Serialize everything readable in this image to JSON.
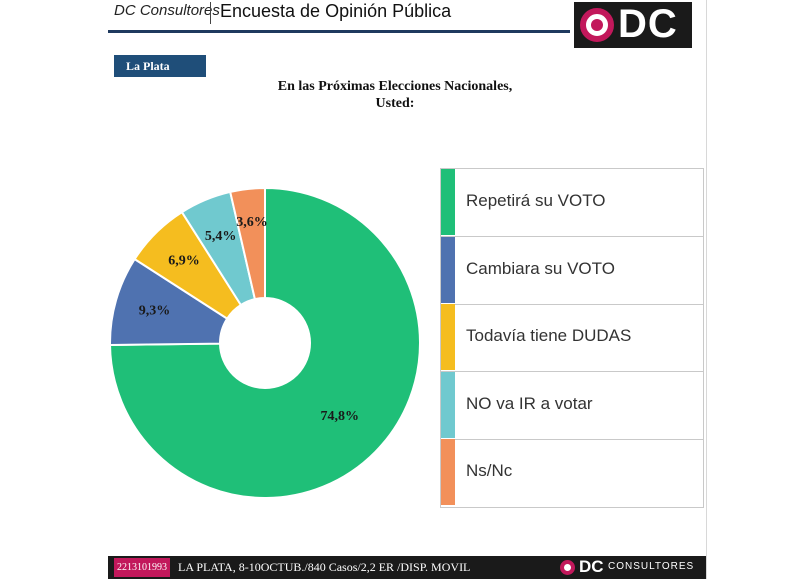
{
  "header": {
    "brand": "DC Consultores",
    "survey_title": "Encuesta de Opinión Pública",
    "logo_text": "DC"
  },
  "location_tag": "La Plata",
  "question": {
    "line1": "En las Próximas Elecciones Nacionales,",
    "line2": "Usted:"
  },
  "colors": {
    "green": "#1fbf78",
    "blue": "#4f72b0",
    "yellow": "#f5bd1f",
    "teal": "#70c9cf",
    "orange": "#f2905a",
    "brand_pink": "#c2185b",
    "navy": "#1f4e79"
  },
  "chart_data": {
    "type": "pie",
    "donut": true,
    "legend_position": "right",
    "categories": [
      "Repetirá su VOTO",
      "Cambiara su VOTO",
      "Todavía tiene DUDAS",
      "NO va IR a votar",
      "Ns/Nc"
    ],
    "values": [
      74.8,
      9.3,
      6.9,
      5.4,
      3.6
    ],
    "labels": [
      "74,8%",
      "9,3%",
      "6,9%",
      "5,4%",
      "3,6%"
    ],
    "colors": [
      "#1fbf78",
      "#4f72b0",
      "#f5bd1f",
      "#70c9cf",
      "#f2905a"
    ]
  },
  "footer": {
    "phone": "2213101993",
    "note": "LA PLATA, 8-10OCTUB./840 Casos/2,2 ER /DISP. MOVIL",
    "logo_text": "DC",
    "logo_sub": "CONSULTORES"
  }
}
